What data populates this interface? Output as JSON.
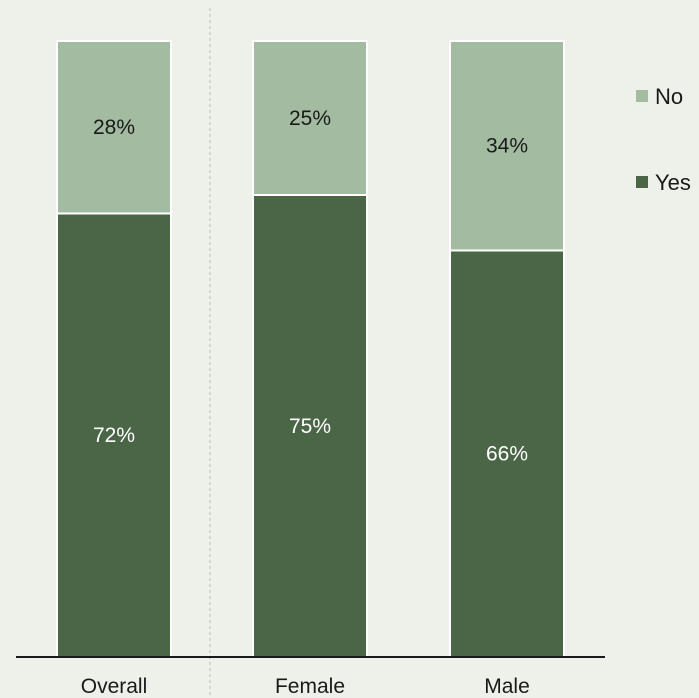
{
  "chart_data": {
    "type": "bar",
    "stacked": true,
    "categories": [
      "Overall",
      "Female",
      "Male"
    ],
    "series": [
      {
        "name": "Yes",
        "values": [
          72,
          75,
          66
        ],
        "labels": [
          "72%",
          "75%",
          "66%"
        ],
        "color": "#4b6647",
        "label_color": "#ffffff"
      },
      {
        "name": "No",
        "values": [
          28,
          25,
          34
        ],
        "labels": [
          "28%",
          "25%",
          "34%"
        ],
        "color": "#a3bba0",
        "label_color": "#1a1a1a"
      }
    ],
    "ylim": [
      0,
      100
    ],
    "legend": {
      "position": "right",
      "order": [
        "No",
        "Yes"
      ]
    },
    "grid": false,
    "separator_after_category": "Overall"
  }
}
